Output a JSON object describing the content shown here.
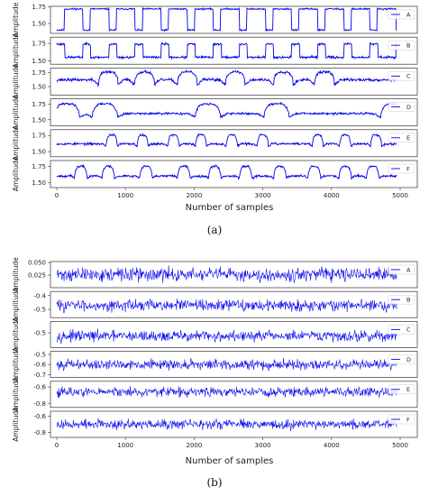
{
  "chart_data": [
    {
      "caption": "(a)",
      "type": "line",
      "xlabel": "Number of samples",
      "ylabel": "Amplitude",
      "xlim": [
        0,
        5000
      ],
      "x_ticks": [
        "0",
        "1000",
        "2000",
        "3000",
        "4000",
        "5000"
      ],
      "line_color": "#0000ee",
      "legend_position": "right",
      "series": [
        {
          "name": "A",
          "ylim": [
            1.35,
            1.76
          ],
          "y_ticks": [
            "1.50",
            "1.75"
          ],
          "kind": "square",
          "base": 1.72,
          "low": 1.4,
          "period": 380,
          "duty": 0.28,
          "noise": 0.015,
          "seed": 11
        },
        {
          "name": "B",
          "ylim": [
            1.45,
            1.84
          ],
          "y_ticks": [
            "1.50",
            "1.75"
          ],
          "kind": "square",
          "base": 1.55,
          "low": 1.74,
          "period": 380,
          "duty": 0.3,
          "noise": 0.02,
          "seed": 23
        },
        {
          "name": "C",
          "ylim": [
            1.35,
            1.83
          ],
          "y_ticks": [
            "1.50",
            "1.75"
          ],
          "kind": "bumps",
          "base": 1.62,
          "centers": [
            750,
            1280,
            1900,
            2600,
            3300,
            3900
          ],
          "width": 140,
          "amp": 0.14,
          "drop": -0.18,
          "noise": 0.03,
          "seed": 37
        },
        {
          "name": "D",
          "ylim": [
            1.4,
            1.84
          ],
          "y_ticks": [
            "1.50",
            "1.75"
          ],
          "kind": "bumps",
          "base": 1.6,
          "centers": [
            150,
            700,
            2200,
            3200,
            4900
          ],
          "width": 180,
          "amp": 0.16,
          "drop": -0.12,
          "noise": 0.02,
          "seed": 41
        },
        {
          "name": "E",
          "ylim": [
            1.42,
            1.84
          ],
          "y_ticks": [
            "1.50",
            "1.75"
          ],
          "kind": "bumps",
          "base": 1.62,
          "centers": [
            800,
            1250,
            1700,
            2100,
            2550,
            3000,
            3800,
            4200,
            4650
          ],
          "width": 80,
          "amp": 0.14,
          "drop": -0.08,
          "noise": 0.02,
          "seed": 53
        },
        {
          "name": "F",
          "ylim": [
            1.42,
            1.84
          ],
          "y_ticks": [
            "1.50",
            "1.75"
          ],
          "kind": "bumps",
          "base": 1.6,
          "centers": [
            350,
            750,
            1300,
            1850,
            2300,
            2750,
            3250,
            3750,
            4200,
            4600
          ],
          "width": 90,
          "amp": 0.15,
          "drop": -0.07,
          "noise": 0.02,
          "seed": 67
        }
      ]
    },
    {
      "caption": "(b)",
      "type": "line",
      "xlabel": "Number of samples",
      "ylabel": "Amplitude",
      "xlim": [
        0,
        5000
      ],
      "x_ticks": [
        "0",
        "1000",
        "2000",
        "3000",
        "4000",
        "5000"
      ],
      "line_color": "#0000ee",
      "legend_position": "right",
      "series": [
        {
          "name": "A",
          "ylim": [
            0.0,
            0.052
          ],
          "y_ticks": [
            "0.025",
            "0.050"
          ],
          "kind": "noise",
          "base": 0.026,
          "amp": 0.016,
          "seed": 71
        },
        {
          "name": "B",
          "ylim": [
            -0.56,
            -0.37
          ],
          "y_ticks": [
            "-0.4",
            "-0.5"
          ],
          "kind": "noise",
          "base": -0.47,
          "amp": 0.05,
          "seed": 83
        },
        {
          "name": "C",
          "ylim": [
            -0.59,
            -0.43
          ],
          "y_ticks": [
            "-0.5"
          ],
          "kind": "noise",
          "base": -0.52,
          "amp": 0.04,
          "seed": 97
        },
        {
          "name": "D",
          "ylim": [
            -0.73,
            -0.47
          ],
          "y_ticks": [
            "-0.5",
            "-0.6",
            "-0.7"
          ],
          "kind": "noise",
          "base": -0.6,
          "amp": 0.06,
          "seed": 101
        },
        {
          "name": "E",
          "ylim": [
            -0.85,
            -0.53
          ],
          "y_ticks": [
            "-0.6",
            "-0.8"
          ],
          "kind": "noise",
          "base": -0.66,
          "amp": 0.07,
          "seed": 113
        },
        {
          "name": "F",
          "ylim": [
            -0.86,
            -0.54
          ],
          "y_ticks": [
            "-0.6",
            "-0.8"
          ],
          "kind": "noise",
          "base": -0.7,
          "amp": 0.07,
          "seed": 127
        }
      ]
    }
  ]
}
